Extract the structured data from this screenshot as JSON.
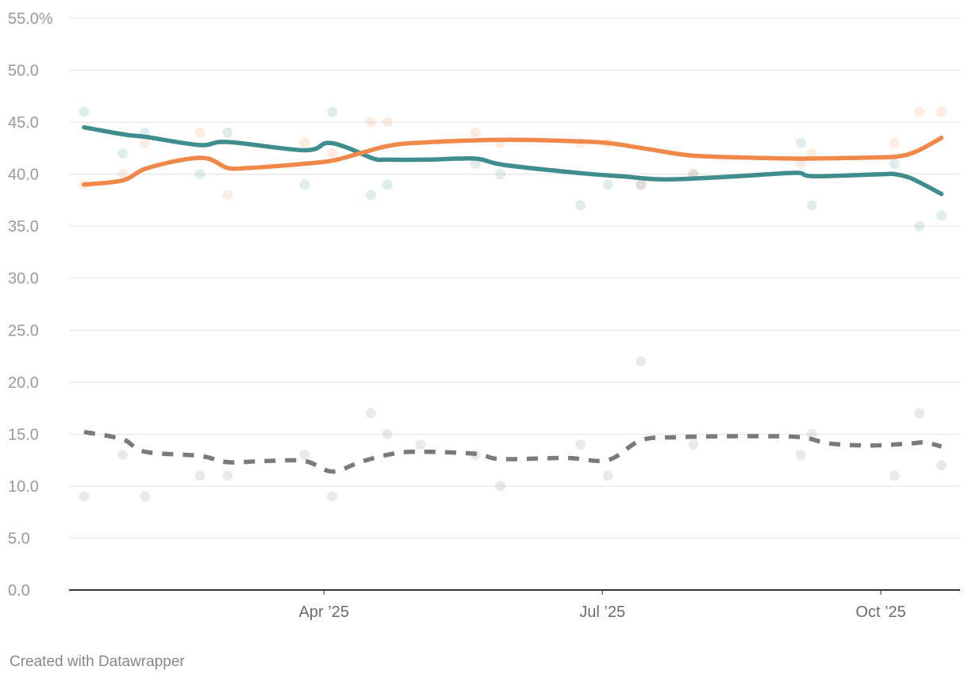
{
  "chart_data": {
    "type": "line",
    "title": "",
    "xlabel": "",
    "ylabel": "",
    "ylim": [
      0,
      55
    ],
    "y_ticks": [
      {
        "value": 0,
        "label": "0.0"
      },
      {
        "value": 5,
        "label": "5.0"
      },
      {
        "value": 10,
        "label": "10.0"
      },
      {
        "value": 15,
        "label": "15.0"
      },
      {
        "value": 20,
        "label": "20.0"
      },
      {
        "value": 25,
        "label": "25.0"
      },
      {
        "value": 30,
        "label": "30.0"
      },
      {
        "value": 35,
        "label": "35.0"
      },
      {
        "value": 40,
        "label": "40.0"
      },
      {
        "value": 45,
        "label": "45.0"
      },
      {
        "value": 50,
        "label": "50.0"
      },
      {
        "value": 55,
        "label": "55.0%"
      }
    ],
    "x_range_days": [
      0,
      312
    ],
    "x_ticks": [
      {
        "day": 87,
        "label": "Apr ’25"
      },
      {
        "day": 188,
        "label": "Jul ’25"
      },
      {
        "day": 289,
        "label": "Oct ’25"
      }
    ],
    "series": [
      {
        "name": "Teal",
        "color": "#3f8d8c",
        "dash": "solid",
        "trend": [
          [
            0,
            44.5
          ],
          [
            15,
            43.8
          ],
          [
            22,
            43.6
          ],
          [
            42,
            42.8
          ],
          [
            52,
            43.1
          ],
          [
            80,
            42.3
          ],
          [
            88,
            43.0
          ],
          [
            95,
            42.6
          ],
          [
            105,
            41.5
          ],
          [
            110,
            41.4
          ],
          [
            125,
            41.4
          ],
          [
            142,
            41.5
          ],
          [
            152,
            40.9
          ],
          [
            180,
            40.1
          ],
          [
            195,
            39.8
          ],
          [
            210,
            39.5
          ],
          [
            230,
            39.7
          ],
          [
            255,
            40.1
          ],
          [
            260,
            40.1
          ],
          [
            265,
            39.8
          ],
          [
            290,
            40.0
          ],
          [
            294,
            40.0
          ],
          [
            300,
            39.6
          ],
          [
            311,
            38.1
          ]
        ],
        "polls": [
          [
            0,
            46
          ],
          [
            14,
            42
          ],
          [
            22,
            44
          ],
          [
            42,
            40
          ],
          [
            52,
            44
          ],
          [
            80,
            39
          ],
          [
            90,
            46
          ],
          [
            104,
            38
          ],
          [
            110,
            39
          ],
          [
            142,
            41
          ],
          [
            151,
            40
          ],
          [
            180,
            37
          ],
          [
            190,
            39
          ],
          [
            202,
            39
          ],
          [
            221,
            40
          ],
          [
            260,
            43
          ],
          [
            264,
            37
          ],
          [
            294,
            41
          ],
          [
            303,
            35
          ],
          [
            311,
            36
          ]
        ]
      },
      {
        "name": "Orange",
        "color": "#f0884a",
        "dash": "solid",
        "trend": [
          [
            0,
            39.0
          ],
          [
            14,
            39.4
          ],
          [
            22,
            40.5
          ],
          [
            36,
            41.4
          ],
          [
            45,
            41.5
          ],
          [
            52,
            40.6
          ],
          [
            60,
            40.6
          ],
          [
            80,
            41.0
          ],
          [
            90,
            41.3
          ],
          [
            100,
            42.0
          ],
          [
            110,
            42.7
          ],
          [
            120,
            43.0
          ],
          [
            150,
            43.3
          ],
          [
            175,
            43.2
          ],
          [
            190,
            43.0
          ],
          [
            205,
            42.4
          ],
          [
            220,
            41.8
          ],
          [
            240,
            41.6
          ],
          [
            260,
            41.5
          ],
          [
            285,
            41.6
          ],
          [
            295,
            41.7
          ],
          [
            302,
            42.2
          ],
          [
            311,
            43.5
          ]
        ],
        "polls": [
          [
            0,
            39
          ],
          [
            14,
            40
          ],
          [
            22,
            43
          ],
          [
            42,
            44
          ],
          [
            52,
            38
          ],
          [
            80,
            43
          ],
          [
            90,
            42
          ],
          [
            104,
            45
          ],
          [
            110,
            45
          ],
          [
            142,
            44
          ],
          [
            151,
            43
          ],
          [
            180,
            43
          ],
          [
            190,
            43
          ],
          [
            202,
            39
          ],
          [
            221,
            40
          ],
          [
            260,
            41
          ],
          [
            264,
            42
          ],
          [
            294,
            43
          ],
          [
            303,
            46
          ],
          [
            311,
            46
          ]
        ]
      },
      {
        "name": "Grey",
        "color": "#7a7a7a",
        "dash": "dashed",
        "trend": [
          [
            0,
            15.2
          ],
          [
            14,
            14.5
          ],
          [
            22,
            13.3
          ],
          [
            42,
            12.9
          ],
          [
            52,
            12.3
          ],
          [
            65,
            12.4
          ],
          [
            80,
            12.4
          ],
          [
            90,
            11.4
          ],
          [
            100,
            12.3
          ],
          [
            110,
            13.0
          ],
          [
            120,
            13.3
          ],
          [
            142,
            13.1
          ],
          [
            151,
            12.6
          ],
          [
            175,
            12.7
          ],
          [
            190,
            12.5
          ],
          [
            202,
            14.4
          ],
          [
            215,
            14.7
          ],
          [
            240,
            14.8
          ],
          [
            260,
            14.7
          ],
          [
            270,
            14.1
          ],
          [
            285,
            13.9
          ],
          [
            300,
            14.1
          ],
          [
            305,
            14.2
          ],
          [
            311,
            13.8
          ]
        ],
        "polls": [
          [
            0,
            9
          ],
          [
            14,
            13
          ],
          [
            22,
            9
          ],
          [
            42,
            11
          ],
          [
            52,
            11
          ],
          [
            80,
            13
          ],
          [
            90,
            9
          ],
          [
            104,
            17
          ],
          [
            110,
            15
          ],
          [
            122,
            14
          ],
          [
            142,
            13
          ],
          [
            151,
            10
          ],
          [
            180,
            14
          ],
          [
            190,
            11
          ],
          [
            202,
            22
          ],
          [
            221,
            14
          ],
          [
            260,
            13
          ],
          [
            264,
            15
          ],
          [
            294,
            11
          ],
          [
            303,
            17
          ],
          [
            311,
            12
          ]
        ]
      }
    ]
  },
  "footer": {
    "credit": "Created with Datawrapper"
  }
}
